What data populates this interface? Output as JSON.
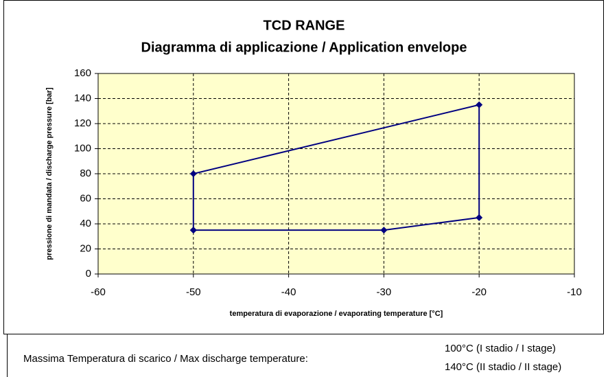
{
  "chart_data": {
    "type": "line",
    "title": "TCD RANGE",
    "subtitle": "Diagramma di applicazione / Application envelope",
    "x_label": "temperatura di evaporazione / evaporating temperature [°C]",
    "y_label": "pressione di mandata / discharge pressure [bar]",
    "x": [
      -50,
      -50,
      -20,
      -20,
      -30,
      -50
    ],
    "series": [
      {
        "name": "TCD",
        "color": "#000080",
        "values": [
          35,
          80,
          135,
          45,
          35,
          35
        ]
      }
    ],
    "xlim": [
      -60,
      -10
    ],
    "xticks": [
      -60,
      -50,
      -40,
      -30,
      -20,
      -10
    ],
    "ylim": [
      0,
      160
    ],
    "yticks": [
      0,
      20,
      40,
      60,
      80,
      100,
      120,
      140,
      160
    ],
    "grid": true
  },
  "footer": {
    "label": "Massima Temperatura di scarico / Max discharge temperature:",
    "values": [
      "100°C (I stadio / I stage)",
      "140°C (II stadio / II stage)"
    ]
  }
}
